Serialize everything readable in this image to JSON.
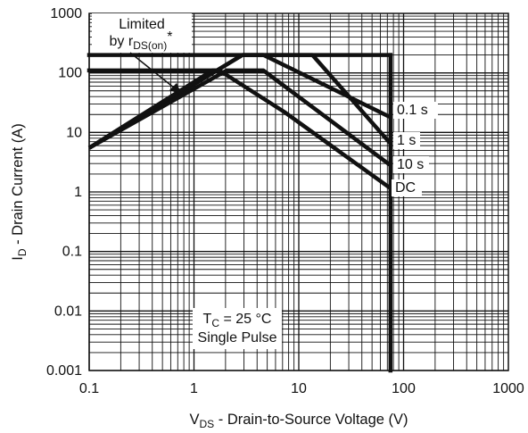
{
  "chart_data": {
    "type": "line",
    "xlabel": {
      "main": "V",
      "sub": "DS",
      "rest": " - Drain-to-Source Voltage (V)"
    },
    "ylabel": {
      "main": "I",
      "sub": "D",
      "rest": " - Drain Current (A)"
    },
    "xscale": "log",
    "yscale": "log",
    "xlim": [
      0.1,
      1000
    ],
    "ylim": [
      0.001,
      1000
    ],
    "x_ticks": [
      {
        "value": 0.1,
        "label": "0.1"
      },
      {
        "value": 1,
        "label": "1"
      },
      {
        "value": 10,
        "label": "10"
      },
      {
        "value": 100,
        "label": "100"
      },
      {
        "value": 1000,
        "label": "1000"
      }
    ],
    "y_ticks": [
      {
        "value": 0.001,
        "label": "0.001"
      },
      {
        "value": 0.01,
        "label": "0.01"
      },
      {
        "value": 0.1,
        "label": "0.1"
      },
      {
        "value": 1,
        "label": "1"
      },
      {
        "value": 10,
        "label": "10"
      },
      {
        "value": 100,
        "label": "100"
      },
      {
        "value": 1000,
        "label": "1000"
      }
    ],
    "grid": true,
    "series": [
      {
        "name": "0.1 s",
        "points": [
          [
            0.1,
            5.5
          ],
          [
            2.9,
            200
          ],
          [
            4.6,
            200
          ],
          [
            75,
            18
          ]
        ]
      },
      {
        "name": "1 s",
        "points": [
          [
            0.1,
            5.5
          ],
          [
            2.9,
            200
          ],
          [
            13.5,
            200
          ],
          [
            75,
            6.5
          ]
        ]
      },
      {
        "name": "10 s",
        "points": [
          [
            0.1,
            5.5
          ],
          [
            2.05,
            110
          ],
          [
            4.6,
            110
          ],
          [
            75,
            2.8
          ]
        ]
      },
      {
        "name": "DC",
        "points": [
          [
            0.1,
            5.5
          ],
          [
            1.5,
            110
          ],
          [
            1.75,
            110
          ],
          [
            7.3,
            22
          ],
          [
            75,
            1.15
          ]
        ]
      }
    ],
    "limits": [
      {
        "kind": "current",
        "value": 200,
        "x_range": [
          0.1,
          75
        ]
      },
      {
        "kind": "current",
        "value": 110,
        "x_range": [
          0.1,
          1.75
        ]
      },
      {
        "kind": "voltage",
        "value": 75,
        "y_range": [
          0.001,
          200
        ]
      }
    ],
    "annotations": {
      "rds": {
        "line1": "Limited",
        "line2_pre": "by r",
        "line2_sub": "DS(on)",
        "line2_sup": "*"
      },
      "conditions": {
        "line1_main": "T",
        "line1_sub": "C",
        "line1_rest": " = 25 °C",
        "line2": "Single Pulse"
      }
    },
    "colors": {
      "curve": "#111111",
      "grid": "#111111",
      "background": "#ffffff"
    }
  }
}
